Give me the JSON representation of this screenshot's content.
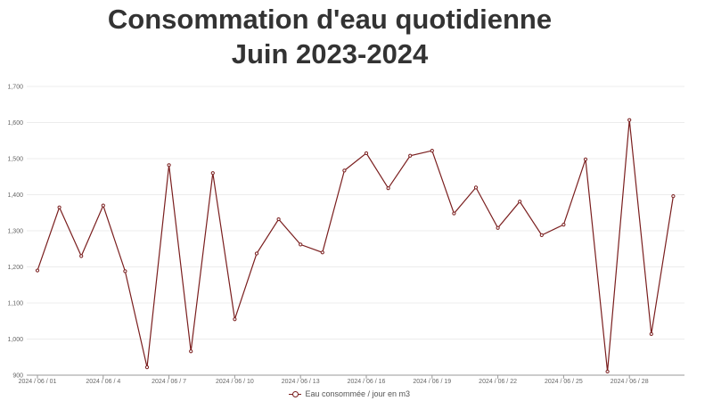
{
  "chart_data": {
    "type": "line",
    "title_line1": "Consommation d'eau quotidienne",
    "title_line2": "Juin 2023-2024",
    "ylim": [
      900,
      1700
    ],
    "yticks": [
      900,
      1000,
      1100,
      1200,
      1300,
      1400,
      1500,
      1600,
      1700
    ],
    "ytick_labels": [
      "900",
      "1,000",
      "1,100",
      "1,200",
      "1,300",
      "1,400",
      "1,500",
      "1,600",
      "1,700"
    ],
    "xtick_labels": [
      "2024 / 06 / 01",
      "2024 / 06 / 4",
      "2024 / 06 / 7",
      "2024 / 06 / 10",
      "2024 / 06 / 13",
      "2024 / 06 / 16",
      "2024 / 06 / 19",
      "2024 / 06 / 22",
      "2024 / 06 / 25",
      "2024 / 06 / 28"
    ],
    "x": [
      "2024-06-01",
      "2024-06-02",
      "2024-06-03",
      "2024-06-04",
      "2024-06-05",
      "2024-06-06",
      "2024-06-07",
      "2024-06-08",
      "2024-06-09",
      "2024-06-10",
      "2024-06-11",
      "2024-06-12",
      "2024-06-13",
      "2024-06-14",
      "2024-06-15",
      "2024-06-16",
      "2024-06-17",
      "2024-06-18",
      "2024-06-19",
      "2024-06-20",
      "2024-06-21",
      "2024-06-22",
      "2024-06-23",
      "2024-06-24",
      "2024-06-25",
      "2024-06-26",
      "2024-06-27",
      "2024-06-28",
      "2024-06-29",
      "2024-06-30"
    ],
    "series": [
      {
        "name": "Eau consommée / jour en m3",
        "color": "#7a1e1e",
        "values": [
          1190,
          1365,
          1230,
          1370,
          1188,
          922,
          1482,
          966,
          1460,
          1055,
          1237,
          1332,
          1262,
          1240,
          1467,
          1515,
          1418,
          1508,
          1522,
          1348,
          1420,
          1308,
          1381,
          1288,
          1317,
          1498,
          910,
          1607,
          1014,
          1396
        ]
      }
    ],
    "grid": true,
    "legend_position": "bottom"
  }
}
